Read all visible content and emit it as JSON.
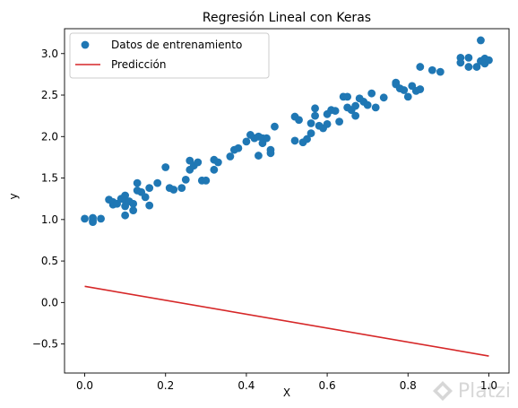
{
  "chart_data": {
    "type": "scatter",
    "title": "Regresión Lineal con Keras",
    "xlabel": "X",
    "ylabel": "y",
    "xlim": [
      -0.05,
      1.05
    ],
    "ylim": [
      -0.85,
      3.3
    ],
    "xticks": [
      0.0,
      0.2,
      0.4,
      0.6,
      0.8,
      1.0
    ],
    "xtick_labels": [
      "0.0",
      "0.2",
      "0.4",
      "0.6",
      "0.8",
      "1.0"
    ],
    "yticks": [
      -0.5,
      0.0,
      0.5,
      1.0,
      1.5,
      2.0,
      2.5,
      3.0
    ],
    "ytick_labels": [
      "−0.5",
      "0.0",
      "0.5",
      "1.0",
      "1.5",
      "2.0",
      "2.5",
      "3.0"
    ],
    "legend_position": "top-left",
    "grid": false,
    "series": [
      {
        "name": "Datos de entrenamiento",
        "kind": "scatter",
        "color": "#1f77b4",
        "points": [
          [
            0.0,
            1.01
          ],
          [
            0.02,
            1.02
          ],
          [
            0.02,
            0.99
          ],
          [
            0.02,
            0.97
          ],
          [
            0.04,
            1.01
          ],
          [
            0.06,
            1.24
          ],
          [
            0.07,
            1.21
          ],
          [
            0.07,
            1.18
          ],
          [
            0.08,
            1.19
          ],
          [
            0.09,
            1.25
          ],
          [
            0.1,
            1.23
          ],
          [
            0.1,
            1.29
          ],
          [
            0.11,
            1.22
          ],
          [
            0.1,
            1.05
          ],
          [
            0.1,
            1.16
          ],
          [
            0.12,
            1.19
          ],
          [
            0.12,
            1.11
          ],
          [
            0.13,
            1.44
          ],
          [
            0.13,
            1.35
          ],
          [
            0.14,
            1.33
          ],
          [
            0.15,
            1.27
          ],
          [
            0.16,
            1.38
          ],
          [
            0.16,
            1.17
          ],
          [
            0.18,
            1.44
          ],
          [
            0.2,
            1.63
          ],
          [
            0.21,
            1.38
          ],
          [
            0.22,
            1.36
          ],
          [
            0.24,
            1.38
          ],
          [
            0.25,
            1.48
          ],
          [
            0.26,
            1.6
          ],
          [
            0.26,
            1.71
          ],
          [
            0.27,
            1.65
          ],
          [
            0.28,
            1.69
          ],
          [
            0.29,
            1.47
          ],
          [
            0.3,
            1.47
          ],
          [
            0.32,
            1.72
          ],
          [
            0.32,
            1.6
          ],
          [
            0.33,
            1.69
          ],
          [
            0.36,
            1.76
          ],
          [
            0.37,
            1.84
          ],
          [
            0.38,
            1.86
          ],
          [
            0.4,
            1.94
          ],
          [
            0.41,
            2.02
          ],
          [
            0.42,
            1.98
          ],
          [
            0.43,
            2.0
          ],
          [
            0.44,
            1.98
          ],
          [
            0.44,
            1.92
          ],
          [
            0.43,
            1.77
          ],
          [
            0.45,
            1.98
          ],
          [
            0.46,
            1.84
          ],
          [
            0.46,
            1.8
          ],
          [
            0.47,
            2.12
          ],
          [
            0.52,
            2.24
          ],
          [
            0.52,
            1.95
          ],
          [
            0.53,
            2.2
          ],
          [
            0.54,
            1.93
          ],
          [
            0.55,
            1.97
          ],
          [
            0.56,
            2.04
          ],
          [
            0.56,
            2.16
          ],
          [
            0.57,
            2.34
          ],
          [
            0.57,
            2.25
          ],
          [
            0.58,
            2.13
          ],
          [
            0.59,
            2.1
          ],
          [
            0.6,
            2.15
          ],
          [
            0.6,
            2.27
          ],
          [
            0.61,
            2.32
          ],
          [
            0.62,
            2.31
          ],
          [
            0.63,
            2.18
          ],
          [
            0.64,
            2.48
          ],
          [
            0.65,
            2.48
          ],
          [
            0.65,
            2.35
          ],
          [
            0.66,
            2.32
          ],
          [
            0.67,
            2.25
          ],
          [
            0.67,
            2.37
          ],
          [
            0.68,
            2.46
          ],
          [
            0.69,
            2.42
          ],
          [
            0.7,
            2.38
          ],
          [
            0.71,
            2.52
          ],
          [
            0.72,
            2.35
          ],
          [
            0.74,
            2.47
          ],
          [
            0.77,
            2.63
          ],
          [
            0.77,
            2.65
          ],
          [
            0.78,
            2.58
          ],
          [
            0.79,
            2.56
          ],
          [
            0.8,
            2.48
          ],
          [
            0.81,
            2.61
          ],
          [
            0.82,
            2.55
          ],
          [
            0.83,
            2.84
          ],
          [
            0.83,
            2.57
          ],
          [
            0.86,
            2.8
          ],
          [
            0.88,
            2.78
          ],
          [
            0.93,
            2.95
          ],
          [
            0.93,
            2.89
          ],
          [
            0.95,
            2.95
          ],
          [
            0.95,
            2.84
          ],
          [
            0.97,
            2.84
          ],
          [
            0.98,
            2.91
          ],
          [
            0.98,
            3.16
          ],
          [
            0.99,
            2.94
          ],
          [
            0.99,
            2.88
          ],
          [
            1.0,
            2.92
          ]
        ]
      },
      {
        "name": "Predicción",
        "kind": "line",
        "color": "#d62728",
        "points": [
          [
            0.0,
            0.195
          ],
          [
            1.0,
            -0.645
          ]
        ]
      }
    ]
  },
  "watermark": {
    "text": "Platzi"
  }
}
